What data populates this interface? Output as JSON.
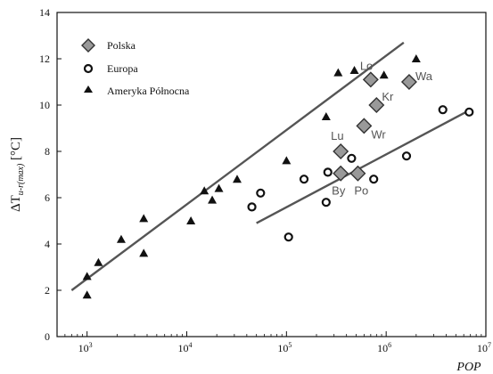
{
  "chart_data": {
    "type": "scatter",
    "xscale": "log",
    "xlim": [
      500,
      10000000
    ],
    "ylim": [
      0,
      14
    ],
    "xlabel": "POP",
    "ylabel_main": "ΔT",
    "ylabel_sub": "u-r(max)",
    "ylabel_unit": " [°C]",
    "x_ticks": [
      {
        "value": 1000,
        "base": "10",
        "exp": "3"
      },
      {
        "value": 10000,
        "base": "10",
        "exp": "4"
      },
      {
        "value": 100000,
        "base": "10",
        "exp": "5"
      },
      {
        "value": 1000000,
        "base": "10",
        "exp": "6"
      },
      {
        "value": 10000000,
        "base": "10",
        "exp": "7"
      }
    ],
    "y_ticks": [
      0,
      2,
      4,
      6,
      8,
      10,
      12,
      14
    ],
    "legend_position": "top-left",
    "series": [
      {
        "name": "Polska",
        "marker": "diamond",
        "points": [
          {
            "x": 700000,
            "y": 11.1
          },
          {
            "x": 1700000,
            "y": 11.0
          },
          {
            "x": 800000,
            "y": 10.0
          },
          {
            "x": 600000,
            "y": 9.1
          },
          {
            "x": 350000,
            "y": 8.0
          },
          {
            "x": 350000,
            "y": 7.05
          },
          {
            "x": 520000,
            "y": 7.05
          }
        ]
      },
      {
        "name": "Europa",
        "marker": "circle",
        "points": [
          {
            "x": 45000,
            "y": 5.6
          },
          {
            "x": 55000,
            "y": 6.2
          },
          {
            "x": 105000,
            "y": 4.3
          },
          {
            "x": 150000,
            "y": 6.8
          },
          {
            "x": 250000,
            "y": 5.8
          },
          {
            "x": 260000,
            "y": 7.1
          },
          {
            "x": 450000,
            "y": 7.7
          },
          {
            "x": 750000,
            "y": 6.8
          },
          {
            "x": 1600000,
            "y": 7.8
          },
          {
            "x": 3700000,
            "y": 9.8
          },
          {
            "x": 6800000,
            "y": 9.7
          }
        ]
      },
      {
        "name": "Ameryka Północna",
        "marker": "triangle",
        "points": [
          {
            "x": 1000,
            "y": 2.6
          },
          {
            "x": 1000,
            "y": 1.8
          },
          {
            "x": 1300,
            "y": 3.2
          },
          {
            "x": 2200,
            "y": 4.2
          },
          {
            "x": 3700,
            "y": 5.1
          },
          {
            "x": 3700,
            "y": 3.6
          },
          {
            "x": 11000,
            "y": 5.0
          },
          {
            "x": 15000,
            "y": 6.3
          },
          {
            "x": 18000,
            "y": 5.9
          },
          {
            "x": 21000,
            "y": 6.4
          },
          {
            "x": 32000,
            "y": 6.8
          },
          {
            "x": 100000,
            "y": 7.6
          },
          {
            "x": 250000,
            "y": 9.5
          },
          {
            "x": 330000,
            "y": 11.4
          },
          {
            "x": 480000,
            "y": 11.5
          },
          {
            "x": 950000,
            "y": 11.3
          },
          {
            "x": 2000000,
            "y": 12.0
          }
        ]
      }
    ],
    "trend_lines": [
      {
        "from": {
          "x": 700,
          "y": 2.0
        },
        "to": {
          "x": 1500000,
          "y": 12.7
        }
      },
      {
        "from": {
          "x": 50000,
          "y": 4.9
        },
        "to": {
          "x": 7000000,
          "y": 9.8
        }
      }
    ],
    "annotations": [
      {
        "text": "Lo",
        "x": 700000,
        "y": 11.1
      },
      {
        "text": "Wa",
        "x": 1700000,
        "y": 11.0
      },
      {
        "text": "Kr",
        "x": 800000,
        "y": 10.0
      },
      {
        "text": "Wr",
        "x": 600000,
        "y": 9.1
      },
      {
        "text": "Lu",
        "x": 350000,
        "y": 8.0
      },
      {
        "text": "By",
        "x": 350000,
        "y": 7.05
      },
      {
        "text": "Po",
        "x": 520000,
        "y": 7.05
      }
    ]
  }
}
